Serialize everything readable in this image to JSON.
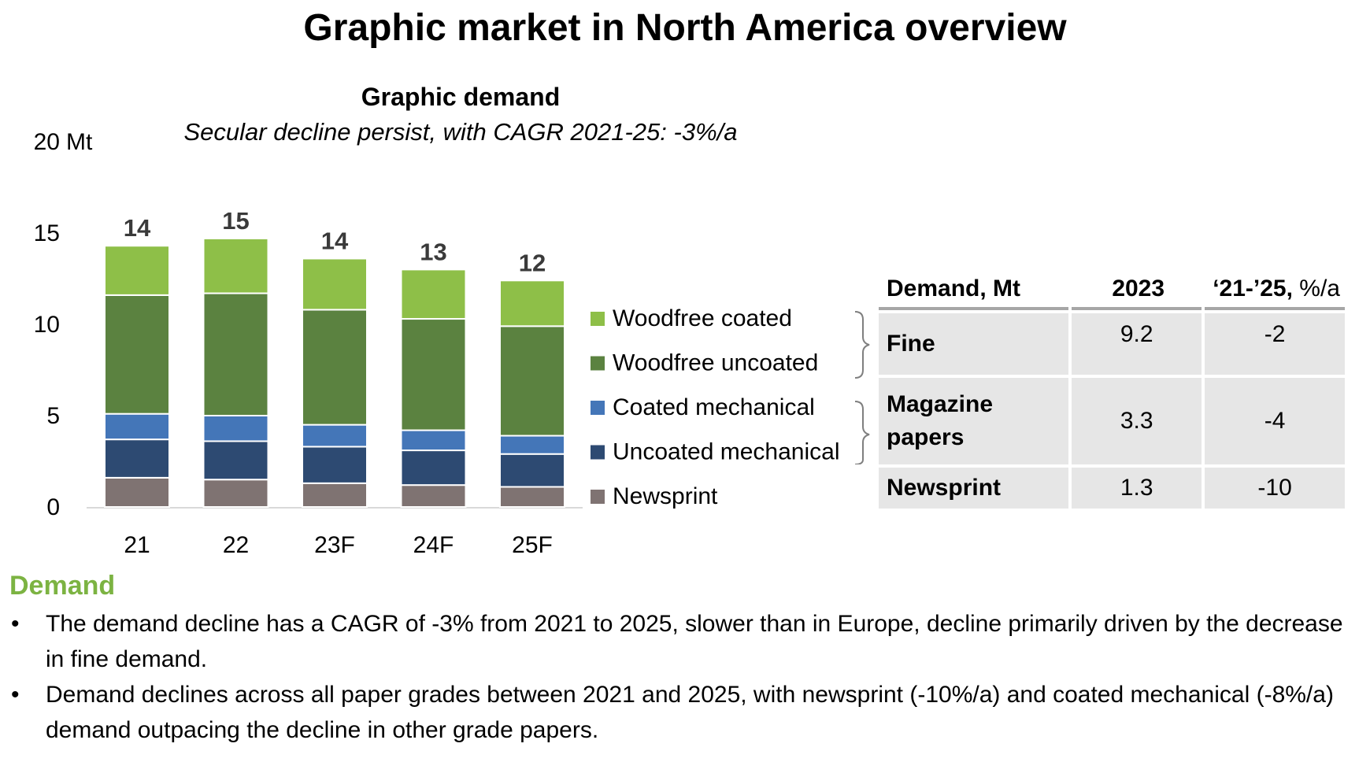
{
  "page": {
    "title": "Graphic market in North America overview"
  },
  "chart_data": {
    "type": "bar",
    "stacked": true,
    "title": "Graphic demand",
    "subtitle": "Secular decline persist, with CAGR 2021-25: -3%/a",
    "yunit": "Mt",
    "ylim": [
      0,
      20
    ],
    "yticks": [
      0,
      5,
      10,
      15,
      20
    ],
    "categories": [
      "21",
      "22",
      "23F",
      "24F",
      "25F"
    ],
    "totals": [
      "14",
      "15",
      "14",
      "13",
      "12"
    ],
    "series": [
      {
        "name": "Newsprint",
        "color": "#7f7372",
        "values": [
          1.6,
          1.5,
          1.3,
          1.2,
          1.1
        ]
      },
      {
        "name": "Uncoated mechanical",
        "color": "#2d4a72",
        "values": [
          2.1,
          2.1,
          2.0,
          1.9,
          1.8
        ]
      },
      {
        "name": "Coated mechanical",
        "color": "#4476b8",
        "values": [
          1.4,
          1.4,
          1.2,
          1.1,
          1.0
        ]
      },
      {
        "name": "Woodfree uncoated",
        "color": "#5b8240",
        "values": [
          6.5,
          6.7,
          6.3,
          6.1,
          6.0
        ]
      },
      {
        "name": "Woodfree coated",
        "color": "#8ebf48",
        "values": [
          2.7,
          3.0,
          2.8,
          2.7,
          2.5
        ]
      }
    ],
    "legend_position": "right",
    "grid": false
  },
  "table": {
    "headers": {
      "name": "Demand, Mt",
      "year": "2023",
      "cagr": "‘21-’25,",
      "cagr_unit": "%/a"
    },
    "rows": [
      {
        "name": "Fine",
        "value": "9.2",
        "cagr": "-2"
      },
      {
        "name": "Magazine papers",
        "value": "3.3",
        "cagr": "-4"
      },
      {
        "name": "Newsprint",
        "value": "1.3",
        "cagr": "-10"
      }
    ]
  },
  "summary": {
    "heading": "Demand",
    "bullet_symbol": "•",
    "bullets": [
      "The demand decline has a CAGR of -3% from 2021 to 2025, slower than in Europe, decline primarily driven by the decrease in fine demand.",
      "Demand declines across all paper grades between 2021 and 2025, with newsprint (-10%/a) and coated mechanical (-8%/a) demand outpacing the decline in other grade papers."
    ]
  },
  "colors": {
    "heading_accent": "#7cb342",
    "table_fill": "#e6e6e6",
    "table_rule": "#a6a6a6"
  }
}
